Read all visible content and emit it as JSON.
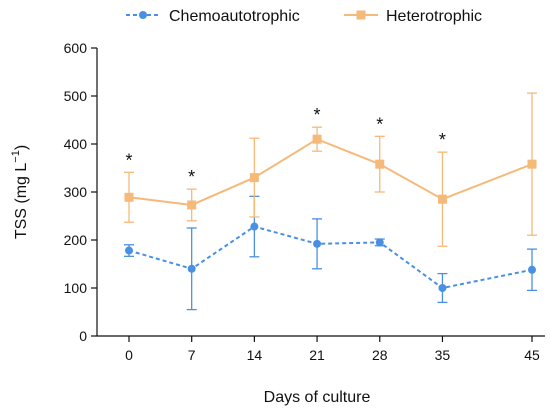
{
  "chart_data": {
    "type": "line",
    "title": "",
    "xlabel": "Days of culture",
    "ylabel_main": "TSS (mg L",
    "ylabel_sup": "−1",
    "ylabel_close": ")",
    "x": [
      0,
      7,
      14,
      21,
      28,
      35,
      45
    ],
    "x_tick_labels": [
      "0",
      "7",
      "14",
      "21",
      "28",
      "35",
      "45"
    ],
    "ylim": [
      0,
      600
    ],
    "y_ticks": [
      0,
      100,
      200,
      300,
      400,
      500,
      600
    ],
    "y_tick_labels": [
      "0",
      "100",
      "200",
      "300",
      "400",
      "500",
      "600"
    ],
    "grid": false,
    "legend_position": "top",
    "series": [
      {
        "name": "Chemoautotrophic",
        "color": "#4a90e2",
        "line_style": "dashed",
        "marker": "circle",
        "values": [
          178,
          140,
          228,
          192,
          195,
          100,
          138
        ],
        "error": [
          12,
          85,
          63,
          52,
          7,
          30,
          43
        ]
      },
      {
        "name": "Heterotrophic",
        "color": "#f5b97a",
        "line_style": "solid",
        "marker": "square",
        "values": [
          289,
          273,
          330,
          410,
          358,
          285,
          358
        ],
        "error": [
          52,
          33,
          82,
          25,
          58,
          98,
          148
        ]
      }
    ],
    "annotations": [
      {
        "x": 0,
        "text": "*"
      },
      {
        "x": 7,
        "text": "*"
      },
      {
        "x": 21,
        "text": "*"
      },
      {
        "x": 28,
        "text": "*"
      },
      {
        "x": 35,
        "text": "*"
      }
    ]
  }
}
